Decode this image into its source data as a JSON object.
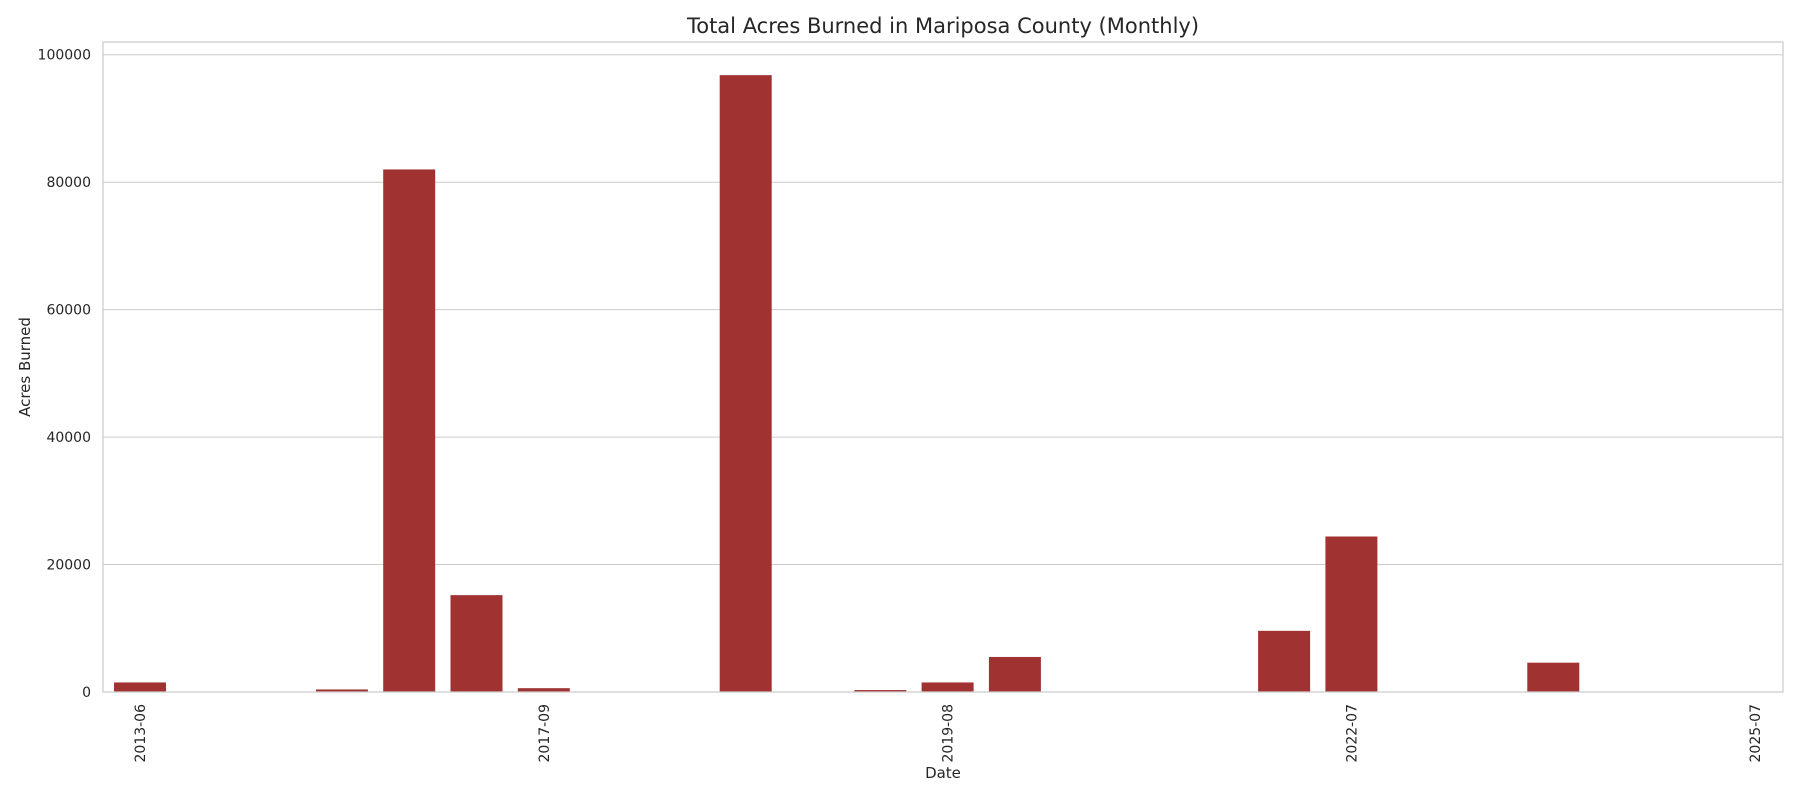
{
  "chart_data": {
    "type": "bar",
    "title": "Total Acres Burned in Mariposa County (Monthly)",
    "xlabel": "Date",
    "ylabel": "Acres Burned",
    "ylim": [
      0,
      102000
    ],
    "yticks": [
      0,
      20000,
      40000,
      60000,
      80000,
      100000
    ],
    "ytick_labels": [
      "0",
      "20000",
      "40000",
      "60000",
      "80000",
      "100000"
    ],
    "xtick_labels": [
      "2013-06",
      "2017-09",
      "2019-08",
      "2022-07",
      "2025-07"
    ],
    "xtick_category_index": [
      0,
      6,
      12,
      18,
      24
    ],
    "categories": [
      "c0",
      "c1",
      "c2",
      "c3",
      "c4",
      "c5",
      "c6",
      "c7",
      "c8",
      "c9",
      "c10",
      "c11",
      "c12",
      "c13",
      "c14",
      "c15",
      "c16",
      "c17",
      "c18",
      "c19",
      "c20",
      "c21",
      "c22",
      "c23",
      "c24"
    ],
    "values": [
      1500,
      0,
      0,
      400,
      82000,
      15200,
      600,
      0,
      0,
      96800,
      0,
      300,
      1500,
      5500,
      0,
      0,
      0,
      9600,
      24400,
      0,
      0,
      4600,
      0,
      0,
      0
    ],
    "bar_color": "#a03232",
    "grid": true,
    "legend": "none"
  }
}
